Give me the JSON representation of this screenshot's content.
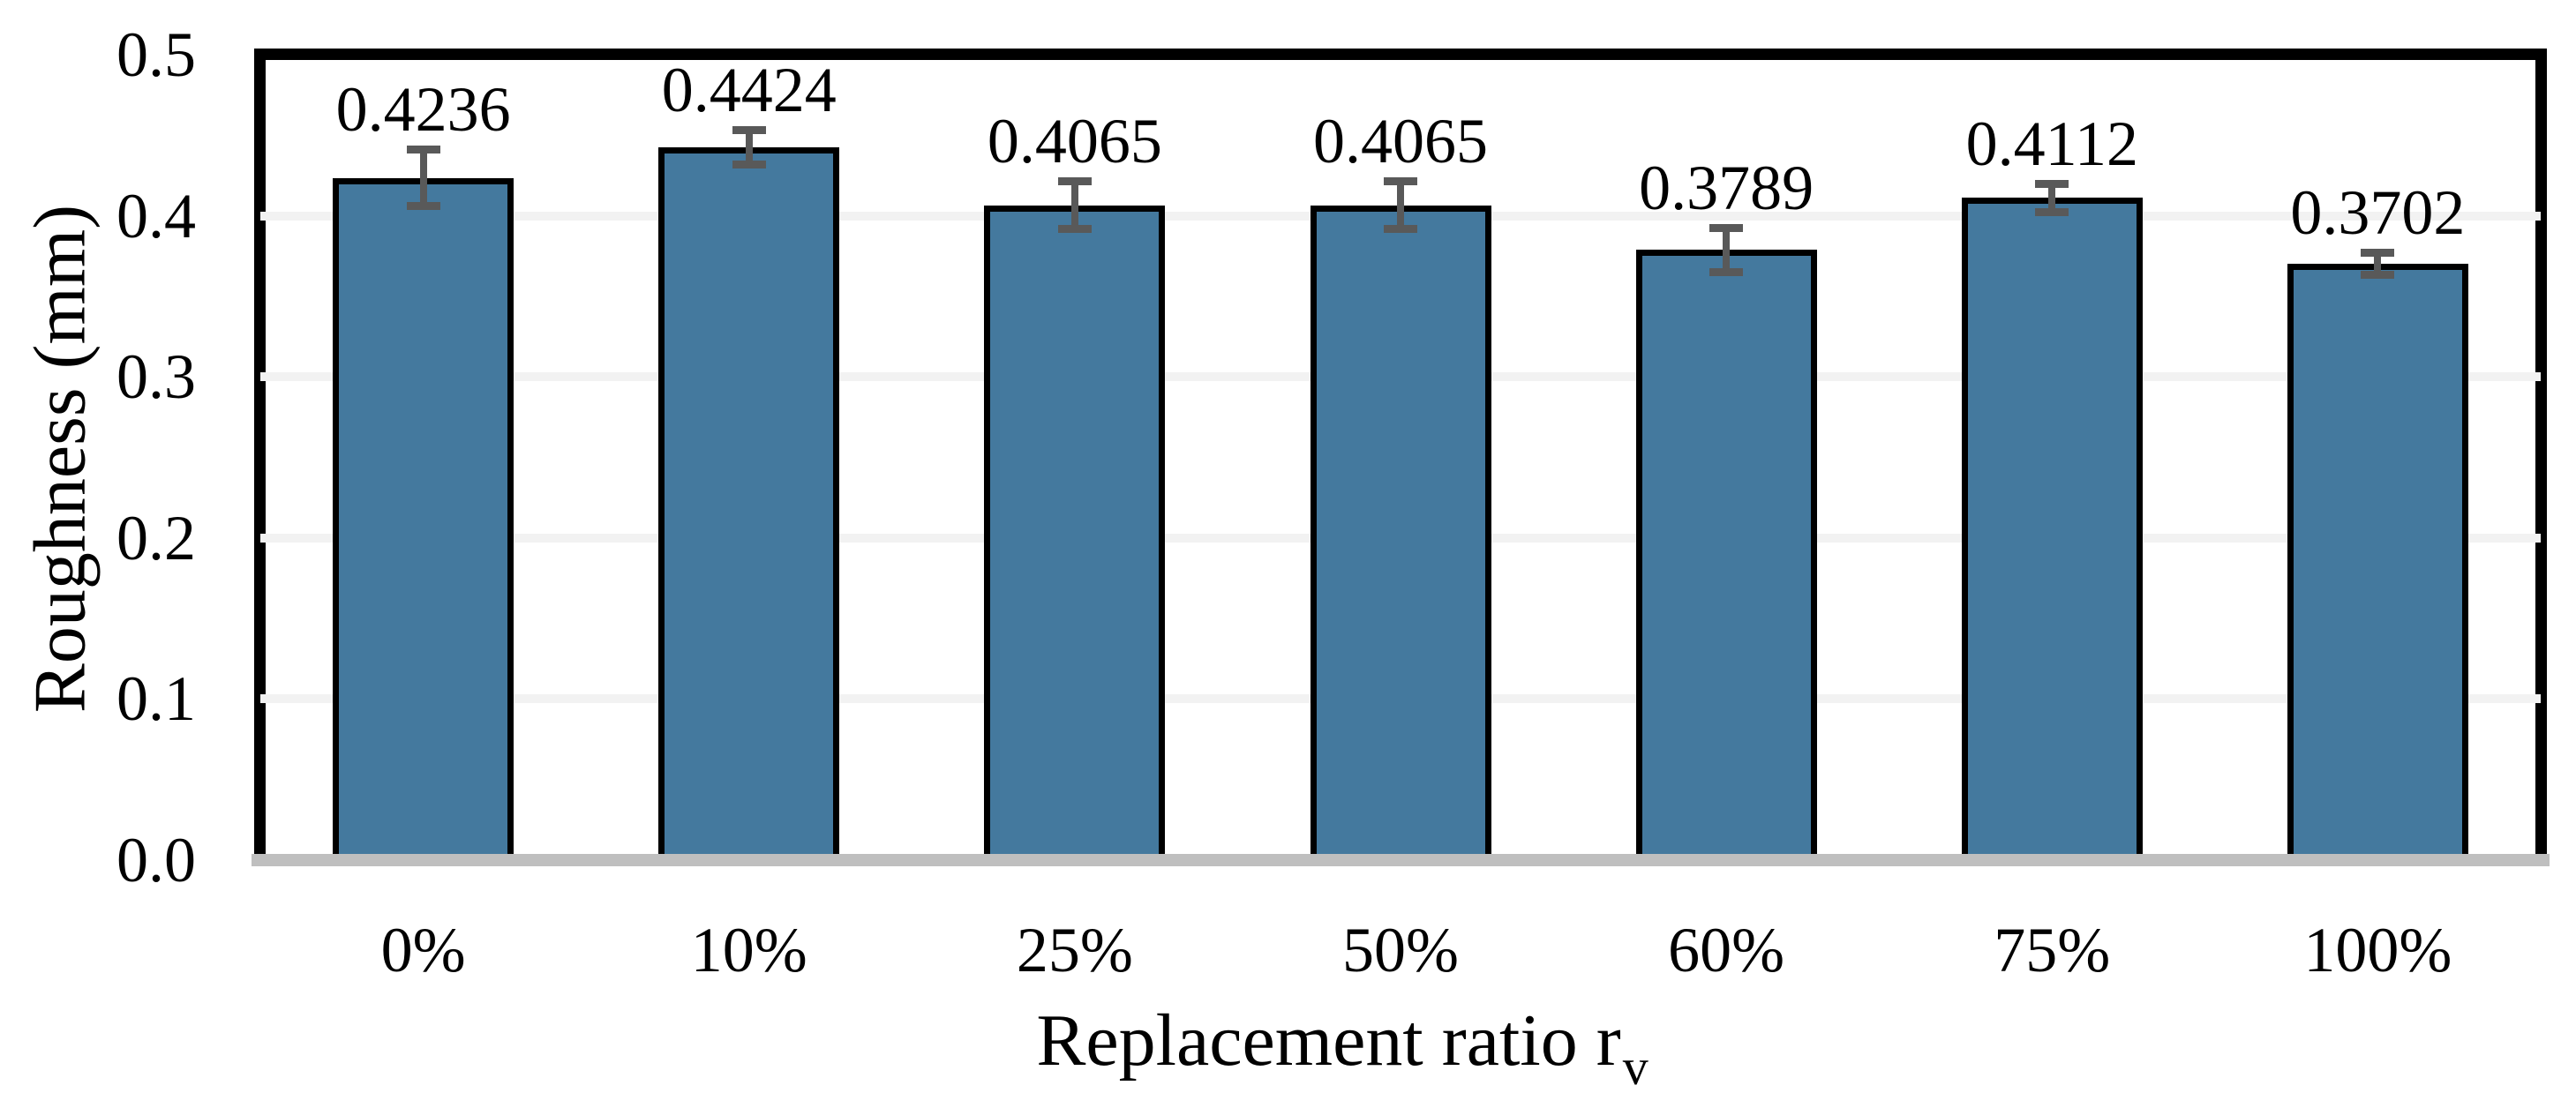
{
  "chart_data": {
    "type": "bar",
    "title": "",
    "categories": [
      "0%",
      "10%",
      "25%",
      "50%",
      "60%",
      "75%",
      "100%"
    ],
    "values": [
      0.4236,
      0.4424,
      0.4065,
      0.4065,
      0.3789,
      0.4112,
      0.3702
    ],
    "value_labels": [
      "0.4236",
      "0.4424",
      "0.4065",
      "0.4065",
      "0.3789",
      "0.4112",
      "0.3702"
    ],
    "errors": [
      0.018,
      0.011,
      0.015,
      0.015,
      0.014,
      0.009,
      0.007
    ],
    "xlabel_main": "Replacement ratio r",
    "xlabel_sub": "v",
    "ylabel": "Roughness (mm)",
    "y_tick_labels": [
      "0.0",
      "0.1",
      "0.2",
      "0.3",
      "0.4",
      "0.5"
    ],
    "ylim": [
      0,
      0.5
    ],
    "grid": "horizontal",
    "legend": "none",
    "colors": {
      "bar_fill": "#44799e",
      "bar_border": "#000000",
      "error_bar": "#595959",
      "gridline": "#f2f2f2",
      "baseline": "#bfbfbf",
      "plot_border": "#000000",
      "text": "#000000",
      "background": "#ffffff"
    }
  }
}
